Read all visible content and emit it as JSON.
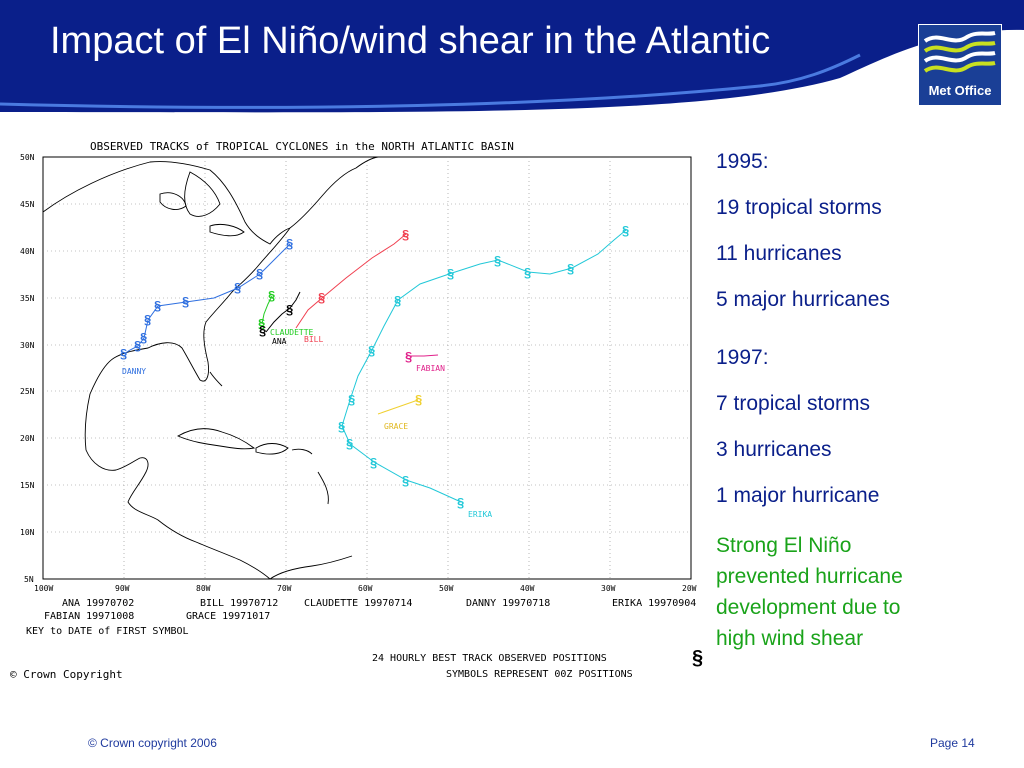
{
  "slide": {
    "title": "Impact of El Niño/wind shear in the Atlantic",
    "logo_text": "Met Office",
    "footer_left": "© Crown copyright 2006",
    "footer_right": "Page 14"
  },
  "map": {
    "title": "OBSERVED TRACKS of TROPICAL CYCLONES in the NORTH ATLANTIC BASIN",
    "lat_labels": [
      "50N",
      "45N",
      "40N",
      "35N",
      "30N",
      "25N",
      "20N",
      "15N",
      "10N",
      "5N"
    ],
    "lon_labels": [
      "100W",
      "90W",
      "80W",
      "70W",
      "60W",
      "50W",
      "40W",
      "30W",
      "20W"
    ],
    "storm_labels": {
      "claudette": "CLAUDETTE",
      "ana": "ANA",
      "bill": "BILL",
      "danny": "DANNY",
      "fabian": "FABIAN",
      "grace": "GRACE",
      "erika": "ERIKA"
    },
    "key_row1": [
      "ANA 19970702",
      "BILL 19970712",
      "CLAUDETTE 19970714",
      "DANNY 19970718",
      "ERIKA 19970904"
    ],
    "key_row2": [
      "FABIAN 19971008",
      "GRACE 19971017"
    ],
    "key_caption": "KEY to DATE of FIRST SYMBOL",
    "best_track": "24 HOURLY BEST TRACK OBSERVED POSITIONS",
    "symbols_note": "SYMBOLS REPRESENT 00Z POSITIONS",
    "copyright": "© Crown Copyright",
    "colors": {
      "ana": "#000000",
      "bill": "#f04050",
      "claudette": "#22cc22",
      "danny": "#3070e0",
      "erika": "#22c8d8",
      "fabian": "#e0208a",
      "grace": "#f0d030"
    }
  },
  "stats": {
    "y1995": "1995:",
    "s1995_storms": "19 tropical storms",
    "s1995_hurricanes": "11 hurricanes",
    "s1995_major": "5 major hurricanes",
    "y1997": "1997:",
    "s1997_storms": "7 tropical storms",
    "s1997_hurricanes": "3 hurricanes",
    "s1997_major": "1 major hurricane",
    "note_line1": "Strong El Niño",
    "note_line2": "prevented hurricane",
    "note_line3": "development due to",
    "note_line4": "high wind shear"
  }
}
